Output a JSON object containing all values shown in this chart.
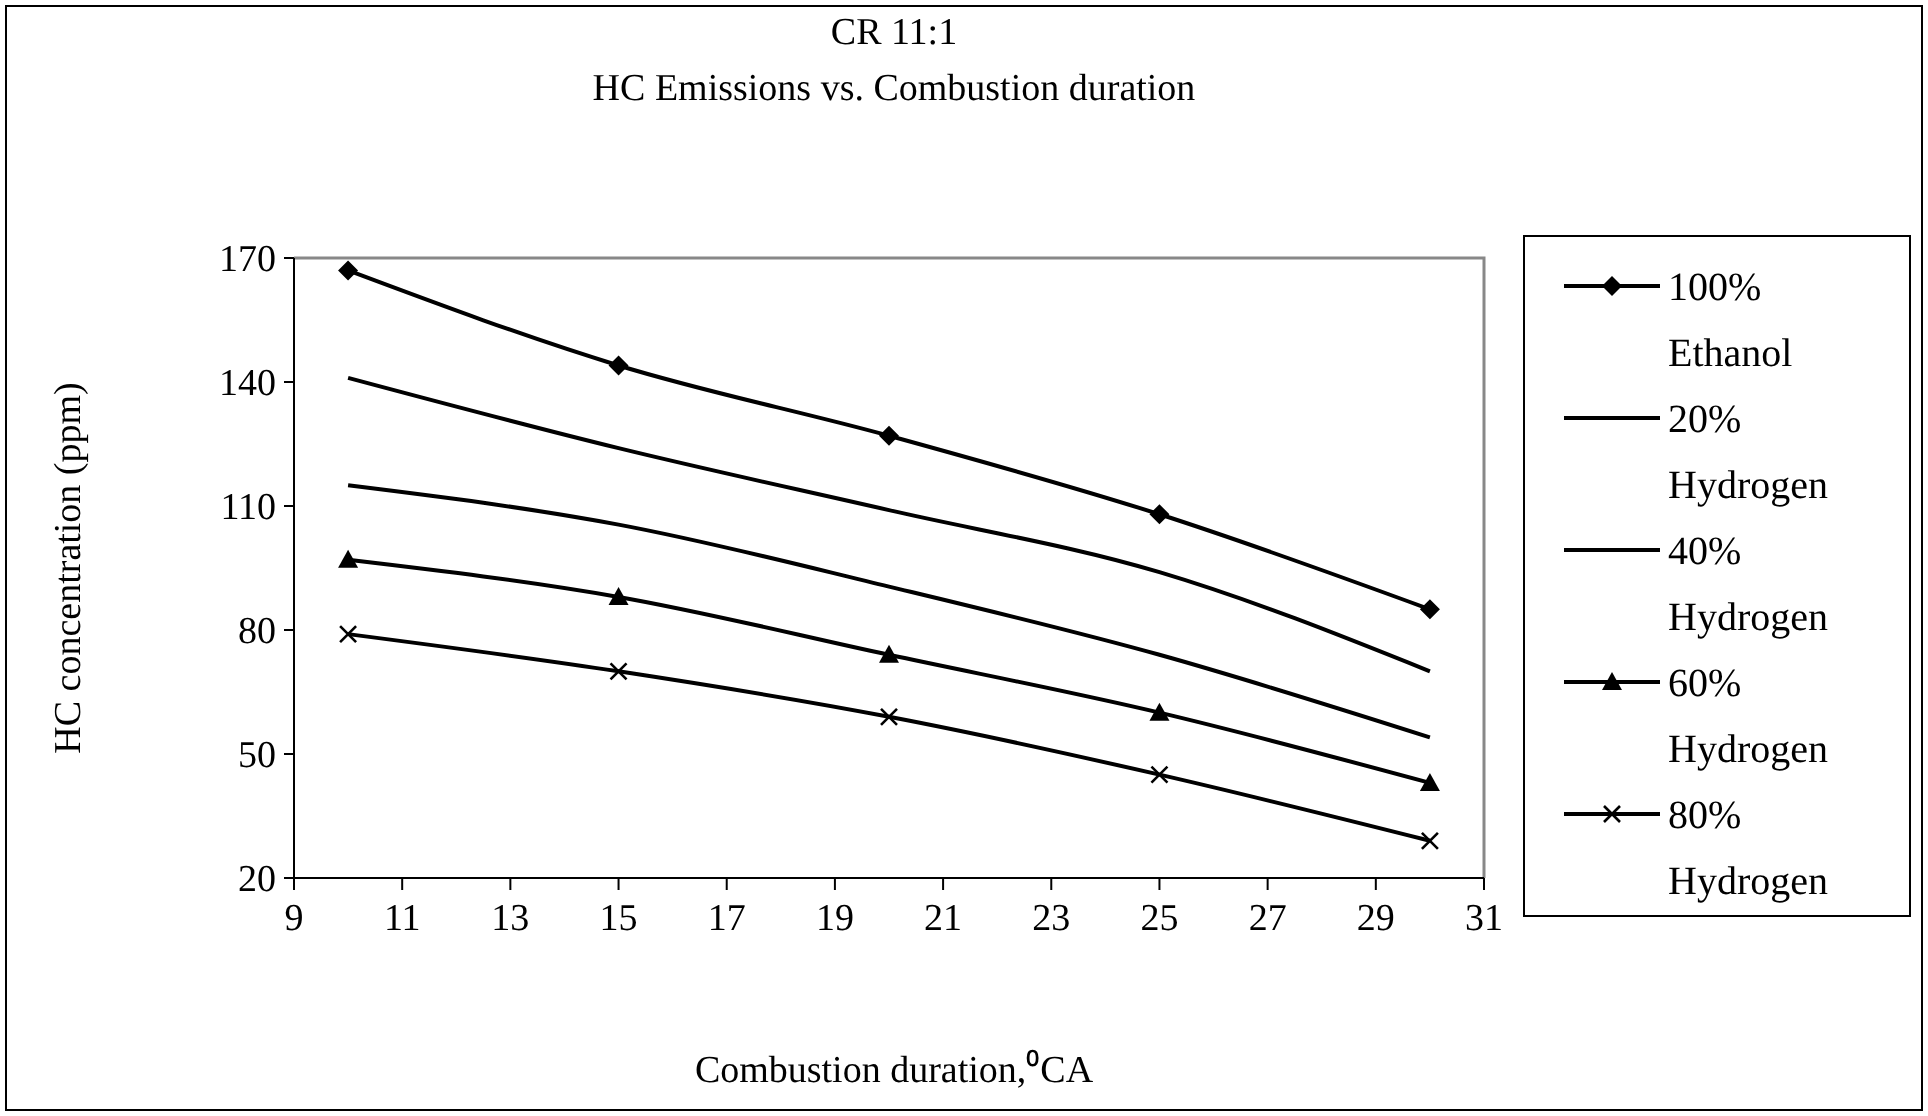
{
  "chart_data": {
    "type": "line",
    "title": "CR 11:1",
    "subtitle": "HC Emissions vs. Combustion duration",
    "xlabel": "Combustion duration,⁰CA",
    "ylabel": "HC concentration (ppm)",
    "x": [
      10,
      15,
      20,
      25,
      30
    ],
    "series": [
      {
        "name": "100% Ethanol",
        "color": "#000000",
        "marker": "diamond",
        "values": [
          167,
          144,
          127,
          108,
          85
        ]
      },
      {
        "name": "20% Hydrogen",
        "color": "#000000",
        "marker": "none",
        "values": [
          141,
          124,
          109,
          94,
          70
        ]
      },
      {
        "name": "40% Hydrogen",
        "color": "#000000",
        "marker": "none",
        "values": [
          115,
          105.5,
          90.5,
          74,
          54
        ]
      },
      {
        "name": "60% Hydrogen",
        "color": "#000000",
        "marker": "triangle",
        "values": [
          97,
          88,
          74,
          60,
          43
        ]
      },
      {
        "name": "80% Hydrogen",
        "color": "#000000",
        "marker": "cross",
        "values": [
          79,
          70,
          59,
          45,
          29
        ]
      }
    ],
    "xlim": [
      9,
      31
    ],
    "xticks": [
      9,
      11,
      13,
      15,
      17,
      19,
      21,
      23,
      25,
      27,
      29,
      31
    ],
    "ylim": [
      20,
      170
    ],
    "yticks": [
      20,
      50,
      80,
      110,
      140,
      170
    ],
    "grid": false,
    "legend": "right",
    "line_style": "solid"
  }
}
